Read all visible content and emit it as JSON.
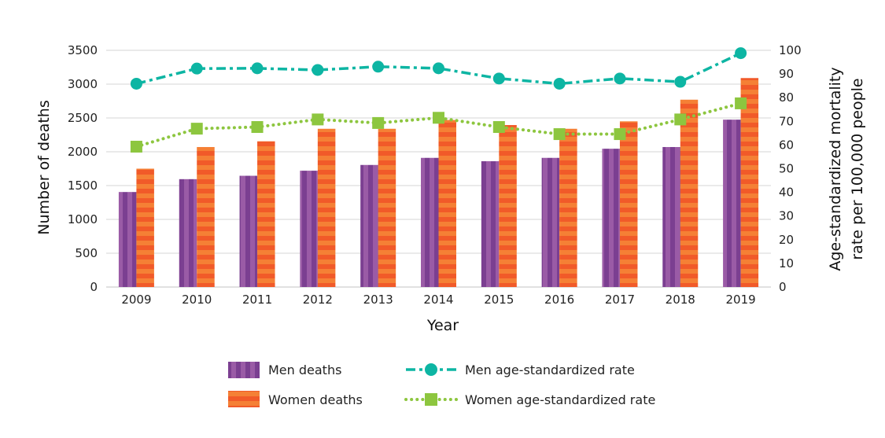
{
  "chart_data": {
    "type": "bar",
    "xlabel": "Year",
    "ylabel": "Number of deaths",
    "y2label": [
      "Age-standardized mortality",
      "rate per 100,000 people"
    ],
    "categories": [
      "2009",
      "2010",
      "2011",
      "2012",
      "2013",
      "2014",
      "2015",
      "2016",
      "2017",
      "2018",
      "2019"
    ],
    "ylim": [
      0,
      3500
    ],
    "yticks": [
      0,
      500,
      1000,
      1500,
      2000,
      2500,
      3000,
      3500
    ],
    "y2lim": [
      0,
      100
    ],
    "y2ticks": [
      0,
      10,
      20,
      30,
      40,
      50,
      60,
      70,
      80,
      90,
      100
    ],
    "grid": true,
    "legend_placement": "bottom",
    "series": [
      {
        "name": "Men deaths",
        "kind": "bar",
        "axis": "left",
        "color": "#7B3F91",
        "color2": "#9A5BA6",
        "values": [
          1405,
          1595,
          1645,
          1720,
          1805,
          1910,
          1860,
          1910,
          2045,
          2070,
          2475
        ]
      },
      {
        "name": "Women deaths",
        "kind": "bar",
        "axis": "left",
        "color": "#F15A29",
        "color2": "#F58035",
        "values": [
          1750,
          2070,
          2155,
          2340,
          2340,
          2470,
          2395,
          2340,
          2450,
          2770,
          3090
        ]
      },
      {
        "name": "Men age-standardized rate",
        "kind": "line",
        "axis": "right",
        "color": "#0DB5A3",
        "marker": "circle",
        "dash": "dash-dot",
        "values": [
          85.9,
          92.3,
          92.4,
          91.7,
          93.1,
          92.4,
          88.1,
          85.9,
          88.1,
          86.7,
          98.8
        ]
      },
      {
        "name": "Women age-standardized rate",
        "kind": "line",
        "axis": "right",
        "color": "#8DC63F",
        "marker": "square",
        "dash": "dotted",
        "values": [
          59.3,
          66.9,
          67.6,
          70.8,
          69.3,
          71.5,
          67.6,
          64.6,
          64.6,
          70.8,
          77.6
        ]
      }
    ]
  }
}
